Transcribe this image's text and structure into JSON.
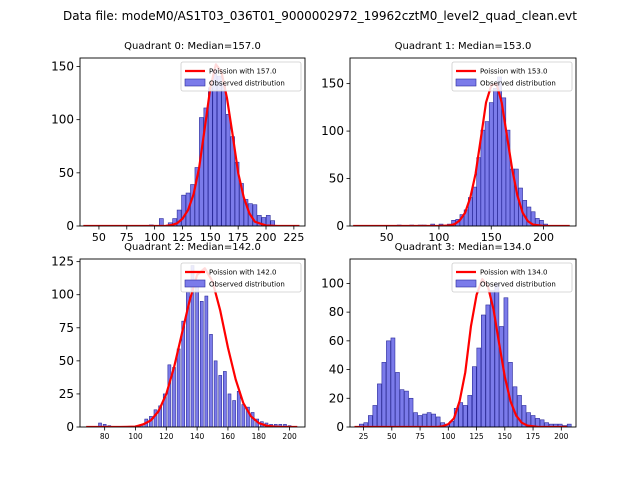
{
  "suptitle": "Data file: modeM0/AS1T03_036T01_9000002972_19962cztM0_level2_quad_clean.evt",
  "colors": {
    "bar_fill": "#7b7bea",
    "bar_edge": "#2a2a9a",
    "curve": "#ff0000",
    "axis": "#000000",
    "background": "#ffffff",
    "legend_edge": "#cccccc"
  },
  "chart_data": [
    {
      "type": "histogram+line",
      "title": "Quadrant 0: Median=157.0",
      "xlabel": "",
      "ylabel": "",
      "xlim": [
        33,
        235
      ],
      "ylim": [
        0,
        158
      ],
      "xticks": [
        50,
        75,
        100,
        125,
        150,
        175,
        200,
        225
      ],
      "yticks": [
        0,
        50,
        100,
        150
      ],
      "bins": {
        "x": [
          93,
          97,
          102,
          106,
          110,
          114,
          118,
          122,
          126,
          130,
          134,
          138,
          142,
          146,
          150,
          154,
          158,
          162,
          166,
          170,
          174,
          178,
          182,
          186,
          190,
          194,
          198,
          202,
          206,
          210
        ],
        "values": [
          0,
          1,
          0,
          7,
          0,
          3,
          7,
          15,
          29,
          31,
          39,
          55,
          102,
          111,
          130,
          147,
          141,
          133,
          105,
          84,
          60,
          40,
          25,
          21,
          20,
          10,
          8,
          10,
          5,
          0
        ]
      },
      "curve": {
        "x": [
          36,
          60,
          80,
          100,
          110,
          115,
          120,
          125,
          130,
          135,
          140,
          145,
          150,
          155,
          160,
          165,
          170,
          175,
          180,
          185,
          190,
          200,
          210,
          220,
          230
        ],
        "y": [
          0,
          0,
          0,
          0,
          0.2,
          0.8,
          2.5,
          6.8,
          15,
          30,
          55,
          92,
          130,
          152,
          145,
          120,
          86,
          50,
          27,
          12,
          4,
          0.5,
          0,
          0,
          0
        ]
      },
      "legend": {
        "curve_label": "Poission with 157.0",
        "bar_label": "Observed distribution",
        "loc": "upper right"
      }
    },
    {
      "type": "histogram+line",
      "title": "Quadrant 1: Median=153.0",
      "xlabel": "",
      "ylabel": "",
      "xlim": [
        15,
        231
      ],
      "ylim": [
        0,
        177
      ],
      "xticks": [
        50,
        100,
        150,
        200
      ],
      "yticks": [
        0,
        50,
        100,
        150
      ],
      "bins": {
        "x": [
          58,
          62,
          66,
          70,
          74,
          78,
          82,
          86,
          90,
          94,
          98,
          102,
          106,
          110,
          114,
          118,
          122,
          126,
          130,
          134,
          138,
          142,
          146,
          150,
          154,
          158,
          162,
          166,
          170,
          174,
          178,
          182,
          186,
          190,
          194,
          198,
          202,
          206
        ],
        "values": [
          0,
          1,
          0,
          0,
          1,
          0,
          1,
          1,
          0,
          2,
          0,
          2,
          0,
          2,
          6,
          7,
          12,
          17,
          30,
          41,
          72,
          101,
          110,
          130,
          145,
          157,
          135,
          101,
          60,
          60,
          40,
          27,
          20,
          15,
          8,
          6,
          2,
          0
        ]
      },
      "curve": {
        "x": [
          18,
          60,
          100,
          110,
          115,
          120,
          125,
          130,
          135,
          140,
          145,
          150,
          155,
          160,
          165,
          170,
          175,
          180,
          185,
          190,
          200,
          210,
          225
        ],
        "y": [
          0,
          0,
          0,
          0.5,
          2,
          6,
          14,
          30,
          55,
          92,
          130,
          148,
          150,
          130,
          95,
          60,
          32,
          14,
          5,
          1.5,
          0,
          0,
          0
        ]
      },
      "legend": {
        "curve_label": "Poission with 153.0",
        "bar_label": "Observed distribution",
        "loc": "upper right"
      }
    },
    {
      "type": "histogram+line",
      "title": "Quadrant 2: Median=142.0",
      "xlabel": "",
      "ylabel": "",
      "xlim": [
        64,
        210
      ],
      "ylim": [
        0,
        127
      ],
      "xticks": [
        80,
        100,
        120,
        140,
        160,
        180,
        200
      ],
      "yticks": [
        0,
        25,
        50,
        75,
        100,
        125
      ],
      "bins": {
        "x": [
          77,
          80,
          83,
          86,
          89,
          92,
          95,
          98,
          101,
          104,
          107,
          110,
          113,
          116,
          119,
          122,
          125,
          128,
          131,
          134,
          137,
          140,
          143,
          146,
          149,
          152,
          155,
          158,
          161,
          164,
          167,
          170,
          173,
          176,
          179,
          182,
          185,
          188,
          191,
          194,
          197,
          200
        ],
        "values": [
          3,
          2,
          1,
          0,
          0,
          0,
          0,
          0,
          1,
          2,
          6,
          8,
          13,
          16,
          25,
          47,
          45,
          59,
          80,
          102,
          122,
          108,
          95,
          99,
          70,
          50,
          39,
          42,
          25,
          20,
          27,
          17,
          15,
          11,
          6,
          4,
          3,
          2,
          2,
          2,
          2,
          1
        ]
      },
      "curve": {
        "x": [
          68,
          90,
          100,
          105,
          110,
          115,
          120,
          125,
          130,
          135,
          140,
          145,
          150,
          155,
          160,
          165,
          170,
          175,
          180,
          185,
          190,
          195,
          205
        ],
        "y": [
          0,
          0,
          0.3,
          2,
          5,
          12,
          25,
          45,
          70,
          95,
          115,
          120,
          110,
          88,
          60,
          36,
          18,
          8,
          3,
          1,
          0.3,
          0,
          0
        ]
      },
      "legend": {
        "curve_label": "Poission with 142.0",
        "bar_label": "Observed distribution",
        "loc": "upper right"
      }
    },
    {
      "type": "histogram+line",
      "title": "Quadrant 3: Median=134.0",
      "xlabel": "",
      "ylabel": "",
      "xlim": [
        13,
        213
      ],
      "ylim": [
        0,
        117
      ],
      "xticks": [
        25,
        50,
        75,
        100,
        125,
        150,
        175,
        200
      ],
      "yticks": [
        0,
        20,
        40,
        60,
        80,
        100
      ],
      "bins": {
        "x": [
          23,
          27,
          31,
          35,
          39,
          43,
          47,
          51,
          55,
          59,
          63,
          67,
          71,
          75,
          79,
          83,
          87,
          91,
          95,
          99,
          103,
          107,
          111,
          115,
          119,
          123,
          127,
          131,
          135,
          139,
          143,
          147,
          151,
          155,
          159,
          163,
          167,
          171,
          175,
          179,
          183,
          187,
          191,
          195,
          199,
          203,
          207
        ],
        "values": [
          2,
          3,
          8,
          15,
          30,
          45,
          60,
          62,
          38,
          26,
          25,
          20,
          10,
          8,
          9,
          10,
          9,
          7,
          3,
          2,
          4,
          13,
          17,
          15,
          22,
          42,
          55,
          78,
          85,
          95,
          100,
          70,
          90,
          45,
          28,
          22,
          15,
          10,
          8,
          6,
          5,
          3,
          2,
          2,
          2,
          1,
          2
        ]
      },
      "curve": {
        "x": [
          17,
          60,
          80,
          90,
          95,
          100,
          105,
          110,
          115,
          120,
          125,
          130,
          135,
          140,
          145,
          150,
          155,
          160,
          165,
          170,
          180,
          190,
          205
        ],
        "y": [
          0,
          0,
          0,
          0,
          0.5,
          2,
          6,
          18,
          38,
          70,
          92,
          103,
          98,
          82,
          58,
          35,
          18,
          8,
          3,
          1,
          0,
          0,
          0
        ]
      },
      "legend": {
        "curve_label": "Poission with 134.0",
        "bar_label": "Observed distribution",
        "loc": "upper right"
      }
    }
  ]
}
